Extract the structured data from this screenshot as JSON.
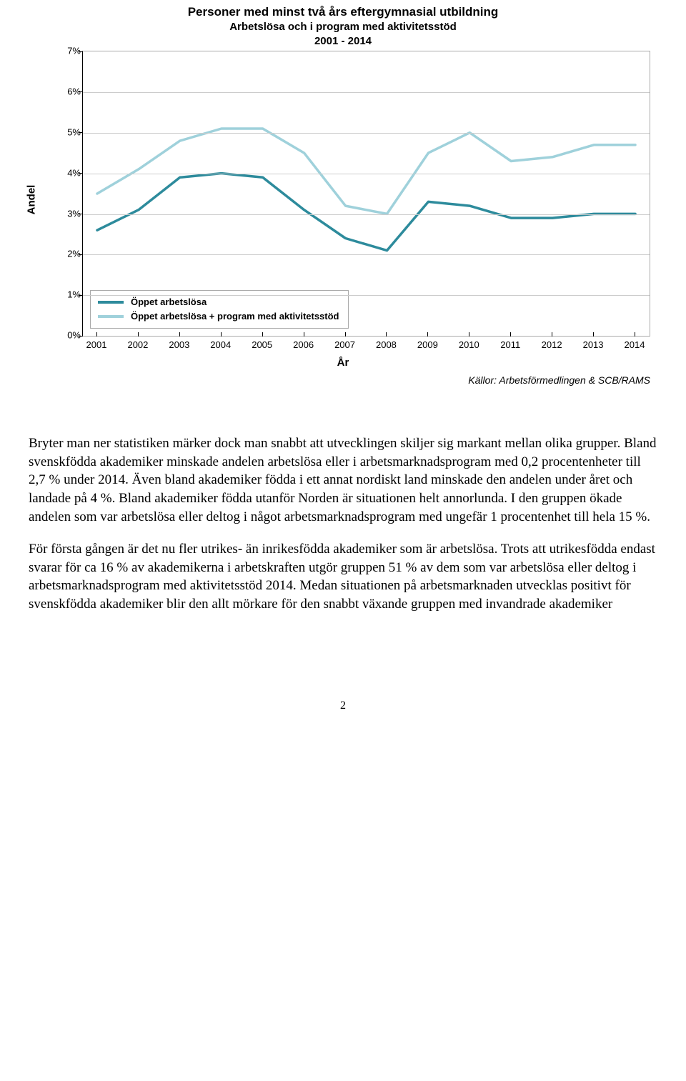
{
  "chart": {
    "type": "line",
    "title_line1": "Personer med minst två års eftergymnasial utbildning",
    "title_line2": "Arbetslösa och i program med aktivitetsstöd",
    "title_line3": "2001 - 2014",
    "title_fontsize": 17,
    "subtitle_fontsize": 15,
    "yaxis_label": "Andel",
    "xaxis_label": "År",
    "axis_label_fontsize": 15,
    "tick_fontsize": 13,
    "source_label": "Källor: Arbetsförmedlingen & SCB/RAMS",
    "source_fontsize": 14,
    "background_color": "#ffffff",
    "border_color": "#aaaaaa",
    "grid_color": "#cccccc",
    "ylim": [
      0,
      7
    ],
    "ytick_step": 1,
    "ytick_suffix": "%",
    "yticks": [
      0,
      1,
      2,
      3,
      4,
      5,
      6,
      7
    ],
    "x_categories": [
      "2001",
      "2002",
      "2003",
      "2004",
      "2005",
      "2006",
      "2007",
      "2008",
      "2009",
      "2010",
      "2011",
      "2012",
      "2013",
      "2014"
    ],
    "line_width": 3.5,
    "series": [
      {
        "name": "Öppet arbetslösa",
        "color": "#2d8b9c",
        "values": [
          2.6,
          3.1,
          3.9,
          4.0,
          3.9,
          3.1,
          2.4,
          2.1,
          3.3,
          3.2,
          2.9,
          2.9,
          3.0,
          3.0
        ]
      },
      {
        "name": "Öppet arbetslösa + program med aktivitetsstöd",
        "color": "#9fd1db",
        "values": [
          3.5,
          4.1,
          4.8,
          5.1,
          5.1,
          4.5,
          3.2,
          3.0,
          4.5,
          5.0,
          4.3,
          4.4,
          4.7,
          4.7
        ]
      }
    ],
    "legend": {
      "position": "bottom-left",
      "border_color": "#aaaaaa",
      "background_color": "#ffffff",
      "fontsize": 13
    }
  },
  "body": {
    "p1": "Bryter man ner statistiken märker dock man snabbt att utvecklingen skiljer sig markant mellan olika grupper. Bland svenskfödda akademiker minskade andelen arbetslösa eller i arbetsmarknadsprogram med 0,2 procentenheter till 2,7 % under 2014. Även bland akademiker födda i ett annat nordiskt land minskade den andelen under året och landade på 4 %. Bland akademiker födda utanför Norden är situationen helt annorlunda. I den gruppen ökade andelen som var arbetslösa eller deltog i något arbetsmarknadsprogram med ungefär 1 procentenhet till hela 15 %.",
    "p2": "För första gången är det nu fler utrikes- än inrikesfödda akademiker som är arbetslösa. Trots att utrikesfödda endast svarar för ca 16 % av akademikerna i arbetskraften utgör gruppen 51 % av dem som var arbetslösa eller deltog i arbetsmarknadsprogram med aktivitetsstöd 2014. Medan situationen på arbetsmarknaden utvecklas positivt för svenskfödda akademiker blir den allt mörkare för den snabbt växande gruppen med invandrade akademiker"
  },
  "page_number": "2"
}
